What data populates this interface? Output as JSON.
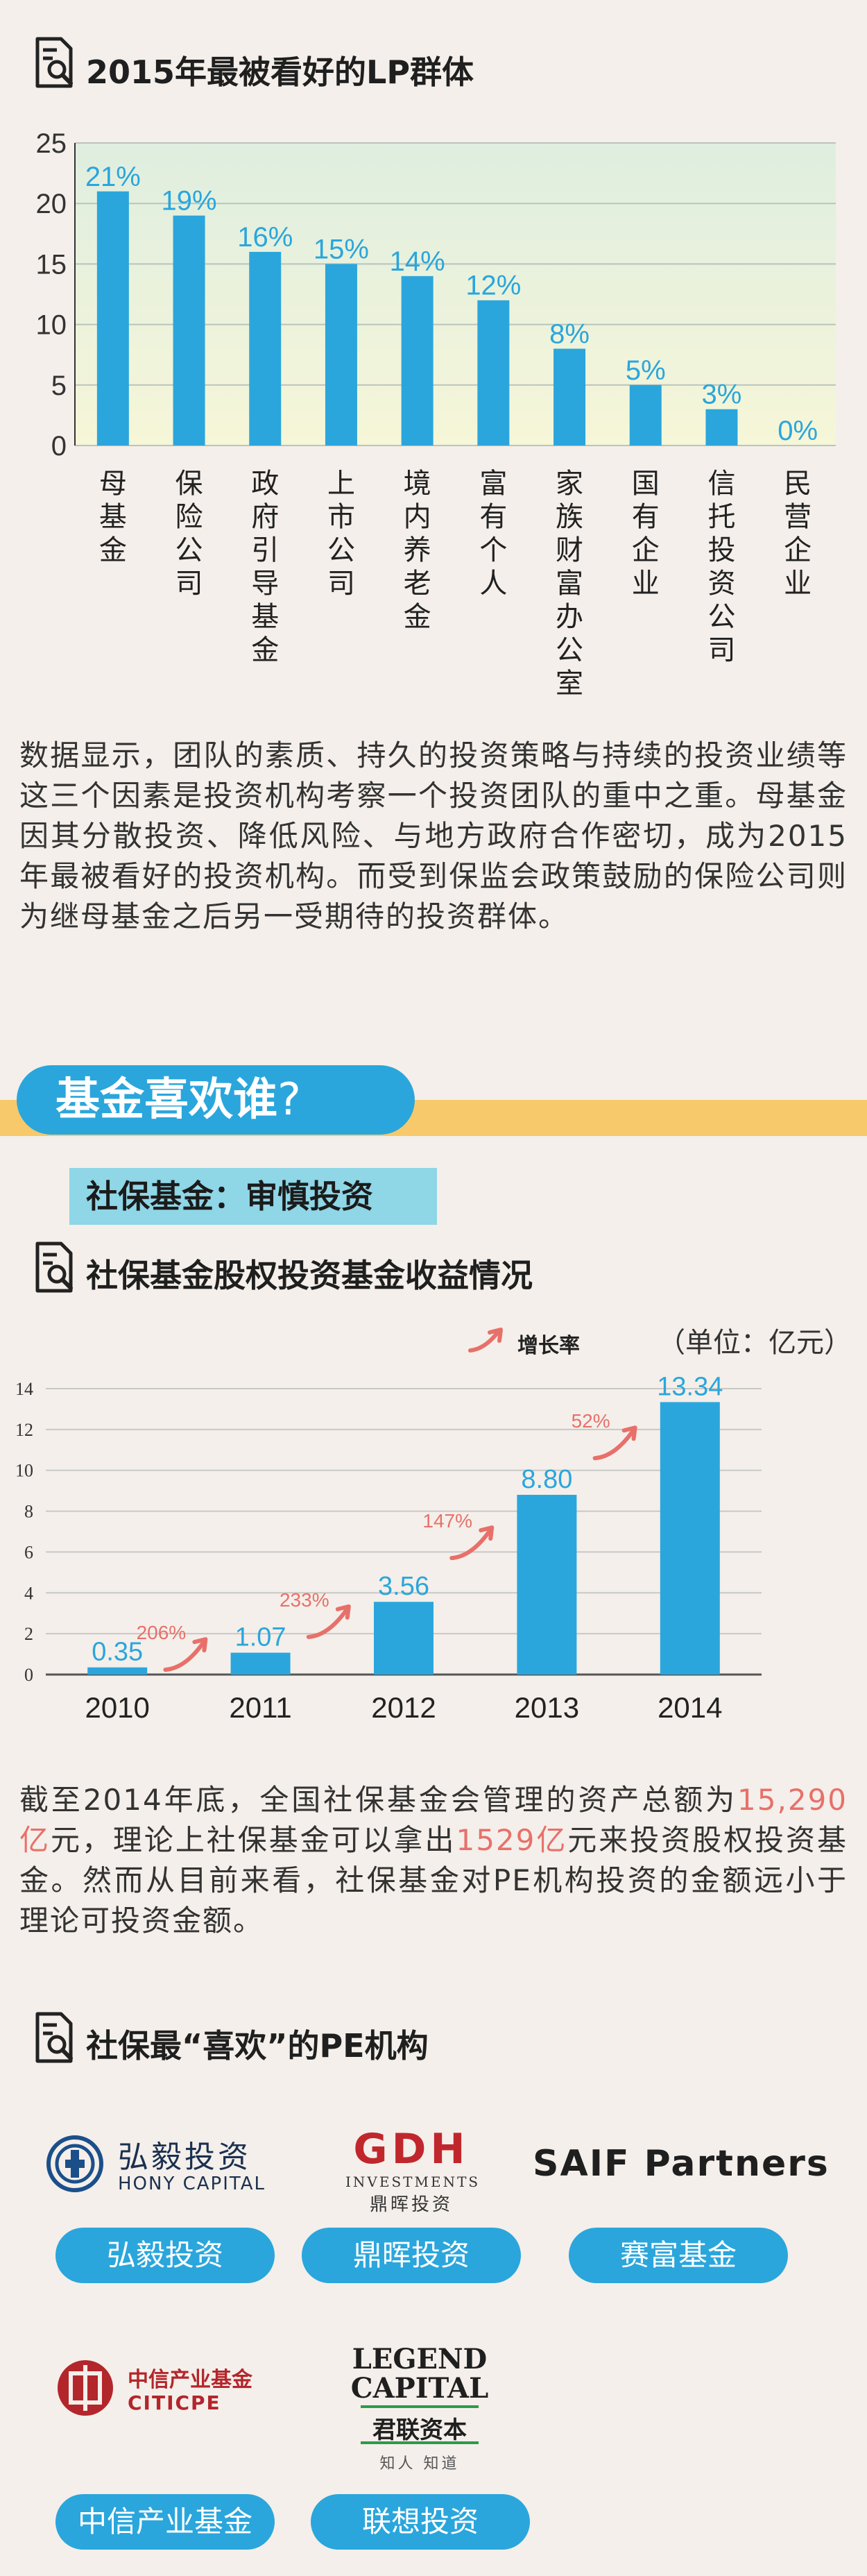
{
  "section1": {
    "title": "2015年最被看好的LP群体",
    "paragraph": "数据显示，团队的素质、持久的投资策略与持续的投资业绩等这三个因素是投资机构考察一个投资团队的重中之重。母基金因其分散投资、降低风险、与地方政府合作密切，成为2015年最被看好的投资机构。而受到保监会政策鼓励的保险公司则为继母基金之后另一受期待的投资群体。"
  },
  "banner": {
    "title": "基金喜欢谁",
    "question_mark": "?",
    "subtitle": "社保基金：审慎投资"
  },
  "section2": {
    "title": "社保基金股权投资基金收益情况",
    "legend_label": "增长率",
    "unit_label": "（单位：亿元）",
    "paragraph_parts": {
      "p1": "截至2014年底，全国社保基金会管理的资产总额为",
      "h1": "15,290亿",
      "p2": "元，理论上社保基金可以拿出",
      "h2": "1529亿",
      "p3": "元来投资股权投资基金。然而从目前来看，社保基金对PE机构投资的金额远小于理论可投资金额。"
    }
  },
  "section3": {
    "title": "社保最“喜欢”的PE机构",
    "institutions": [
      {
        "logo_main": "弘毅投资",
        "logo_sub": "HONY CAPITAL",
        "button": "弘毅投资"
      },
      {
        "logo_main": "GDH",
        "logo_sub": "INVESTMENTS",
        "logo_sub2": "鼎晖投资",
        "button": "鼎晖投资"
      },
      {
        "logo_main": "SAIF Partners",
        "button": "赛富基金"
      },
      {
        "logo_main": "中信产业基金",
        "logo_sub": "CITICPE",
        "button": "中信产业基金"
      },
      {
        "logo_main": "LEGEND",
        "logo_main2": "CAPITAL",
        "logo_sub": "君联资本",
        "logo_sub2": "知人 知道",
        "button": "联想投资"
      }
    ]
  },
  "colors": {
    "accent_blue": "#2aa6dc",
    "highlight_red": "#e8706a",
    "banner_yellow": "#f7c96a",
    "sub_banner_cyan": "#8fd6e6"
  },
  "icons": [
    "document-search-icon",
    "growth-arrow-icon"
  ],
  "chart_data": [
    {
      "type": "bar",
      "title": "2015年最被看好的LP群体",
      "categories": [
        "母基金",
        "保险公司",
        "政府引导基金",
        "上市公司",
        "境内养老金",
        "富有个人",
        "家族财富办公室",
        "国有企业",
        "信托投资公司",
        "民营企业"
      ],
      "values": [
        21,
        19,
        16,
        15,
        14,
        12,
        8,
        5,
        3,
        0
      ],
      "value_labels": [
        "21%",
        "19%",
        "16%",
        "15%",
        "14%",
        "12%",
        "8%",
        "5%",
        "3%",
        "0%"
      ],
      "ylim": [
        0,
        25
      ],
      "yticks": [
        0,
        5,
        10,
        15,
        20,
        25
      ],
      "grid": true
    },
    {
      "type": "bar",
      "title": "社保基金股权投资基金收益情况",
      "categories": [
        "2010",
        "2011",
        "2012",
        "2013",
        "2014"
      ],
      "values": [
        0.35,
        1.07,
        3.56,
        8.8,
        13.34
      ],
      "value_labels": [
        "0.35",
        "1.07",
        "3.56",
        "8.80",
        "13.34"
      ],
      "growth_rates": [
        "206%",
        "233%",
        "147%",
        "52%"
      ],
      "growth_series_name": "增长率",
      "unit": "（单位：亿元）",
      "ylim": [
        0,
        14
      ],
      "yticks": [
        0,
        2,
        4,
        6,
        8,
        10,
        12,
        14
      ],
      "grid": true
    }
  ]
}
